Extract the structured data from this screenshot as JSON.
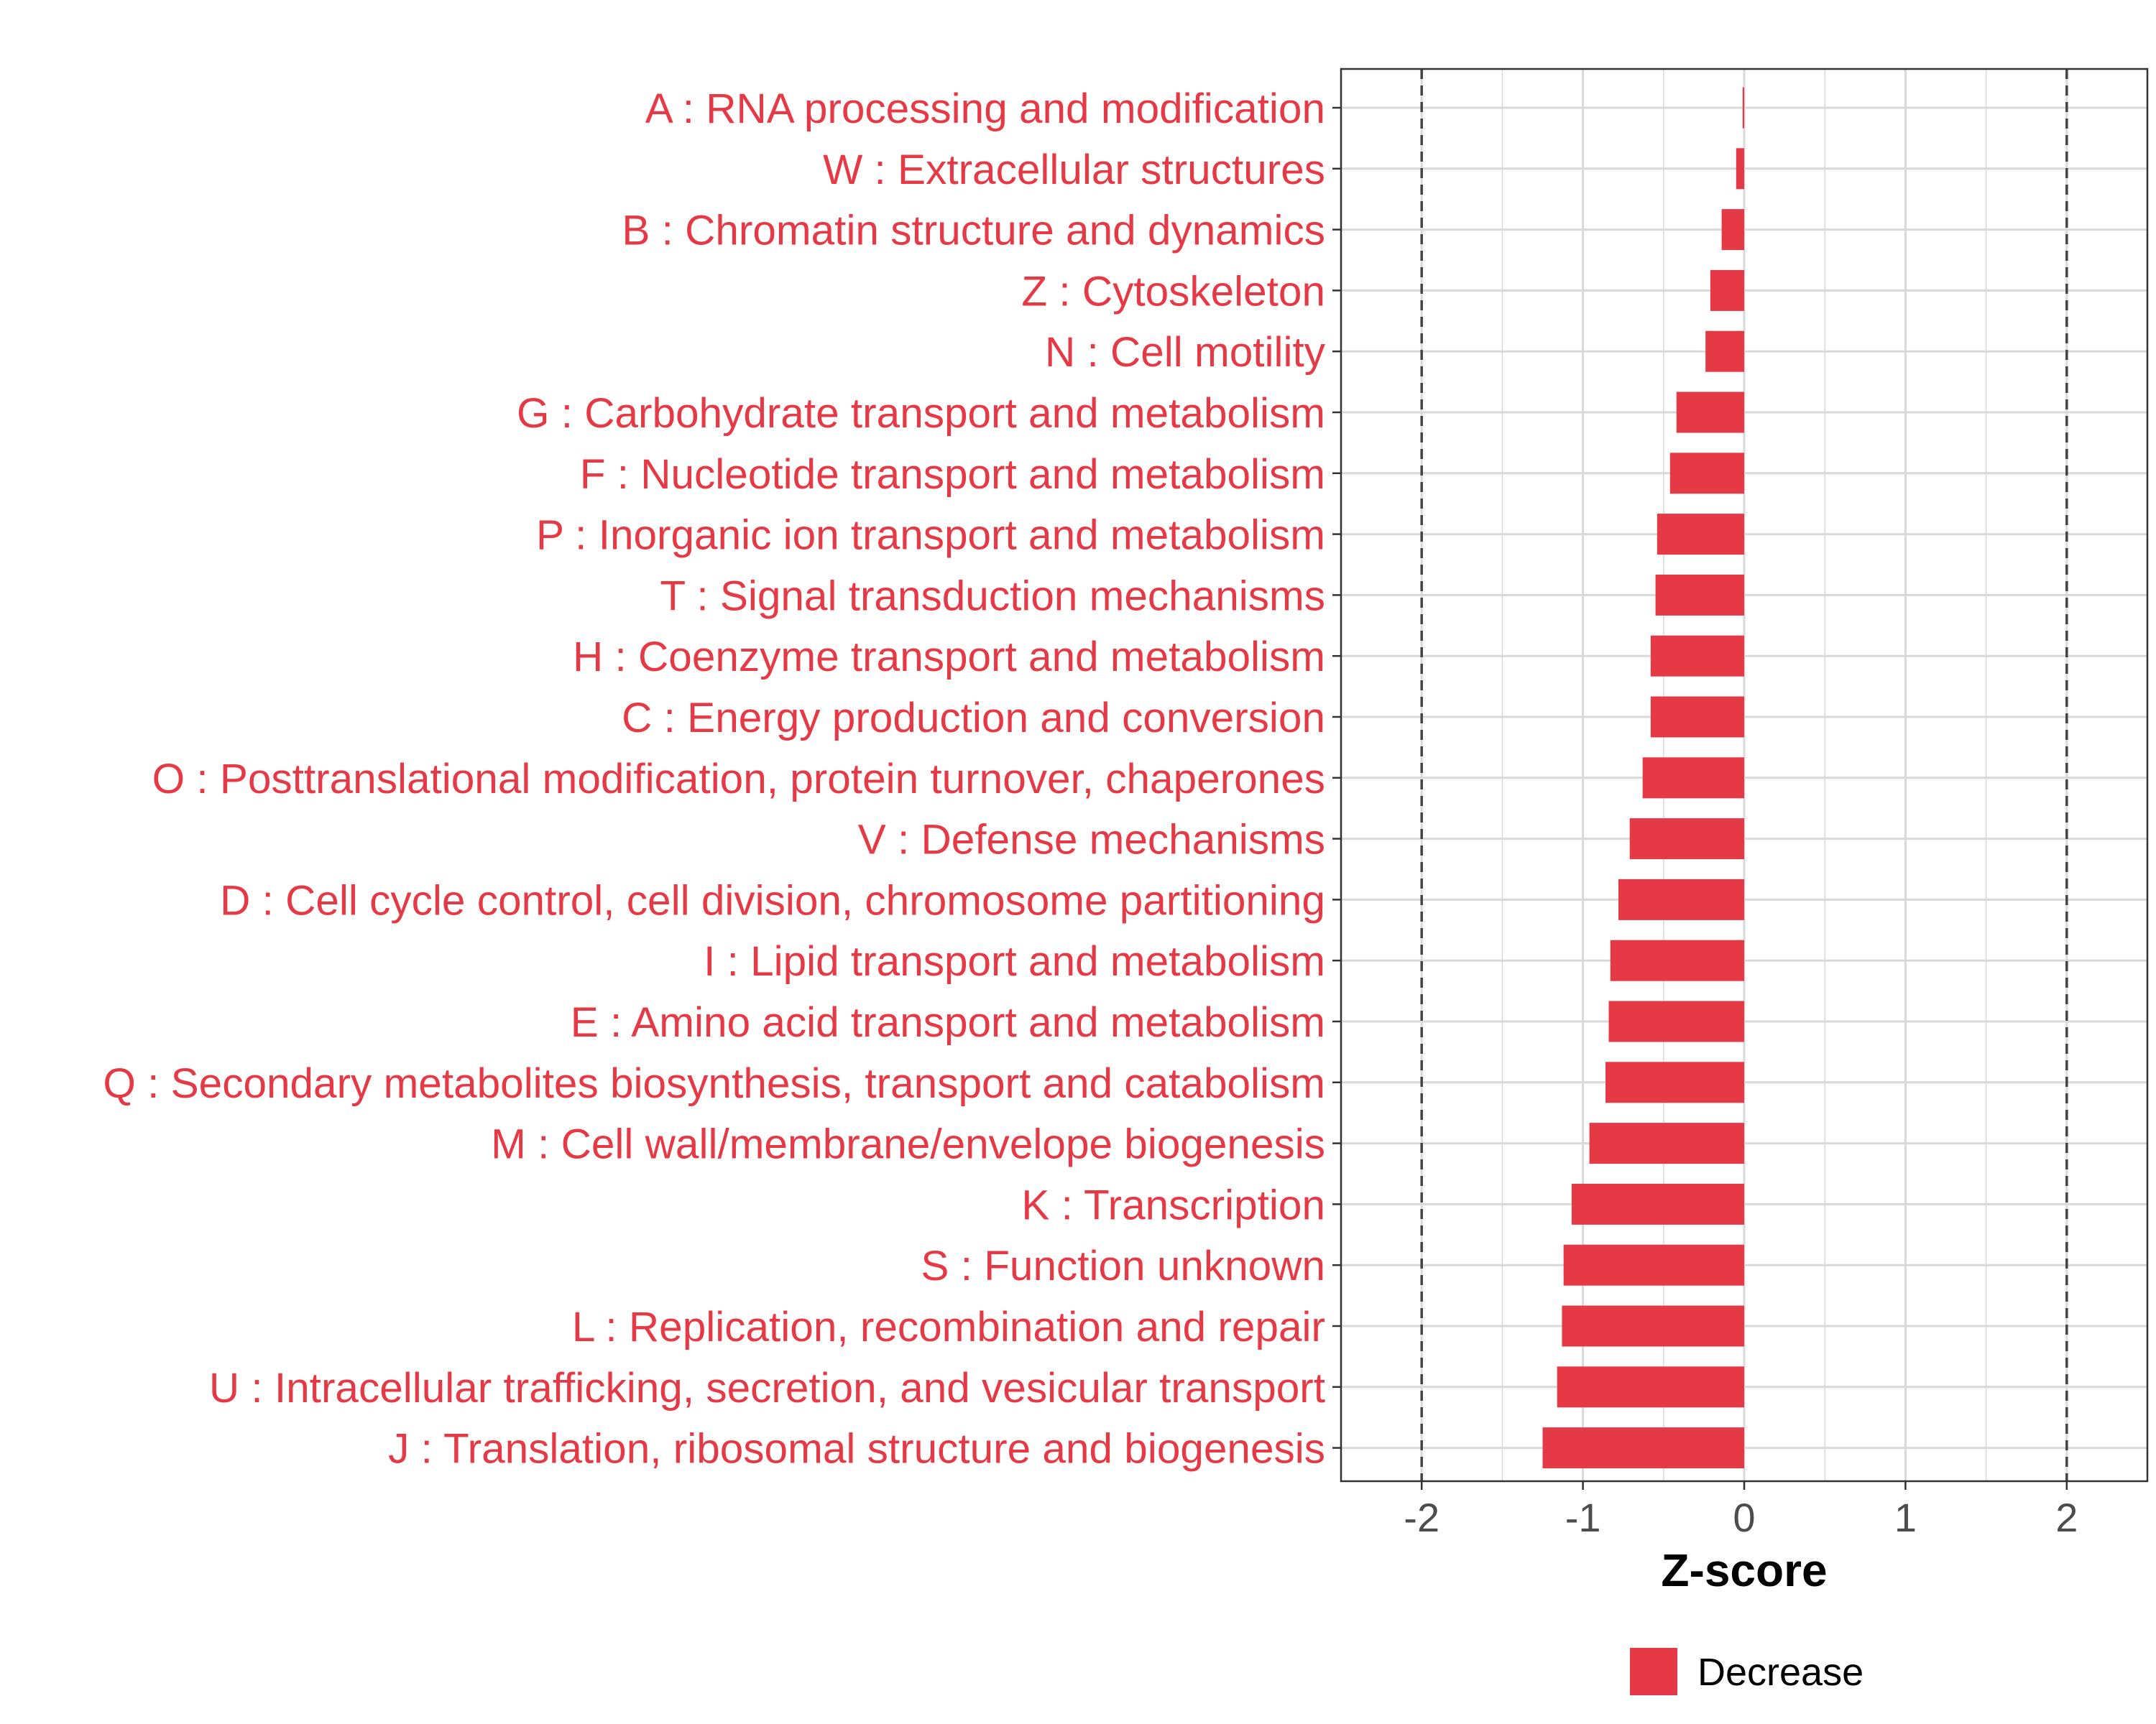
{
  "chart_data": {
    "type": "bar",
    "orientation": "horizontal",
    "title": "",
    "xlabel": "Z-score",
    "ylabel": "",
    "xlim": [
      -2.5,
      2.5
    ],
    "x_ticks": [
      -2,
      -1,
      0,
      1,
      2
    ],
    "x_tick_labels": [
      "-2",
      "-1",
      "0",
      "1",
      "2"
    ],
    "reference_lines": [
      -2,
      2
    ],
    "grid": true,
    "categories": [
      "A : RNA processing and modification",
      "W : Extracellular structures",
      "B : Chromatin structure and dynamics",
      "Z : Cytoskeleton",
      "N : Cell motility",
      "G : Carbohydrate transport and metabolism",
      "F : Nucleotide transport and metabolism",
      "P : Inorganic ion transport and metabolism",
      "T : Signal transduction mechanisms",
      "H : Coenzyme transport and metabolism",
      "C : Energy production and conversion",
      "O : Posttranslational modification, protein turnover, chaperones",
      "V : Defense mechanisms",
      "D : Cell cycle control, cell division, chromosome partitioning",
      "I : Lipid transport and metabolism",
      "E : Amino acid transport and metabolism",
      "Q : Secondary metabolites biosynthesis, transport and catabolism",
      "M : Cell wall/membrane/envelope biogenesis",
      "K : Transcription",
      "S : Function unknown",
      "L : Replication, recombination and repair",
      "U : Intracellular trafficking, secretion, and vesicular transport",
      "J : Translation, ribosomal structure and biogenesis"
    ],
    "values": [
      -0.01,
      -0.05,
      -0.14,
      -0.21,
      -0.24,
      -0.42,
      -0.46,
      -0.54,
      -0.55,
      -0.58,
      -0.58,
      -0.63,
      -0.71,
      -0.78,
      -0.83,
      -0.84,
      -0.86,
      -0.96,
      -1.07,
      -1.12,
      -1.13,
      -1.16,
      -1.25
    ],
    "series": [
      {
        "name": "Decrease",
        "color": "#e63946"
      }
    ],
    "legend": {
      "position": "bottom",
      "entries": [
        "Decrease"
      ]
    }
  },
  "colors": {
    "bar": "#e63946",
    "category_label": "#e63946",
    "axis_text": "#4d4d4d",
    "grid": "#d9d9d9"
  }
}
